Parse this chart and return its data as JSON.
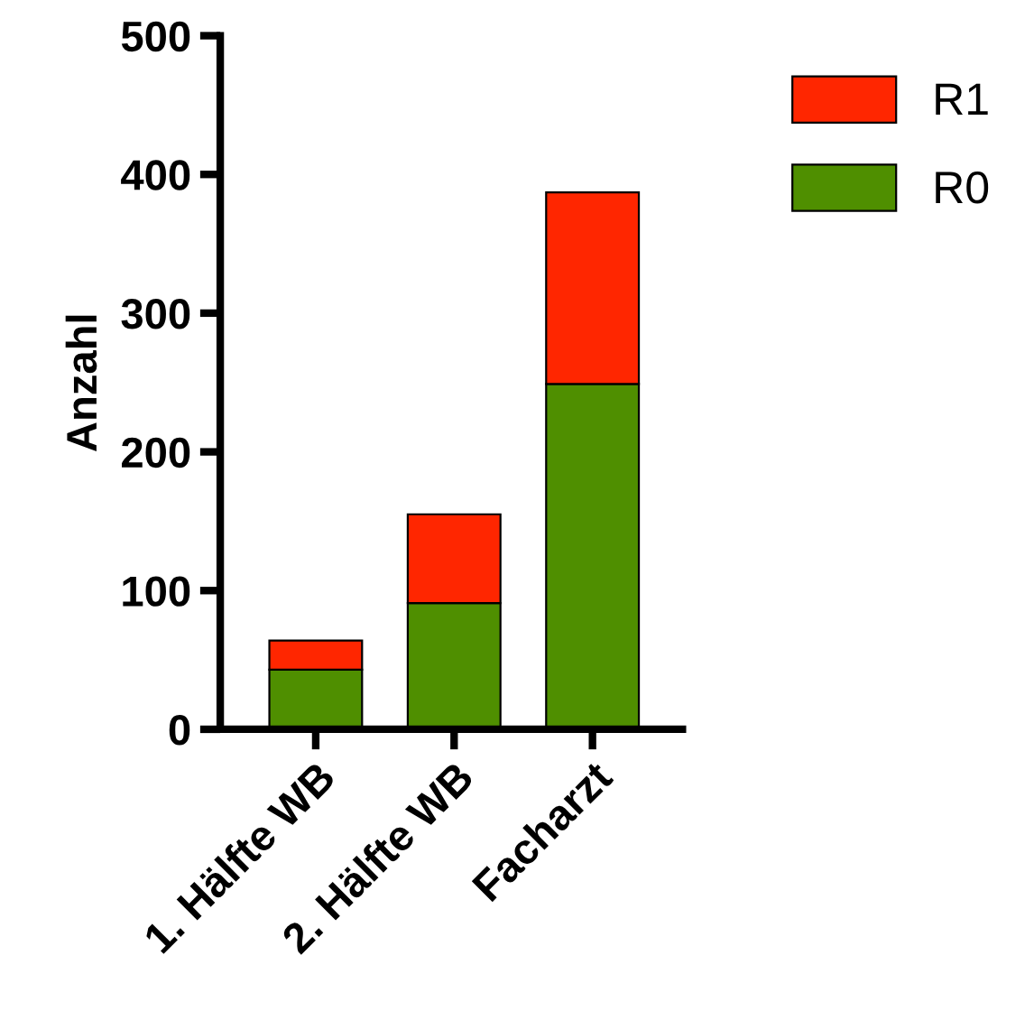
{
  "chart_data": {
    "type": "bar",
    "stacked": true,
    "ylabel": "Anzahl",
    "categories": [
      "1. Hälfte WB",
      "2. Hälfte WB",
      "Facharzt"
    ],
    "series": [
      {
        "name": "R0",
        "color": "#4f8f00",
        "values": [
          43,
          91,
          249
        ]
      },
      {
        "name": "R1",
        "color": "#ff2600",
        "values": [
          21,
          64,
          138
        ]
      }
    ],
    "ylim": [
      0,
      500
    ],
    "yticks": [
      0,
      100,
      200,
      300,
      400,
      500
    ],
    "grid": false,
    "legend": "top right"
  }
}
